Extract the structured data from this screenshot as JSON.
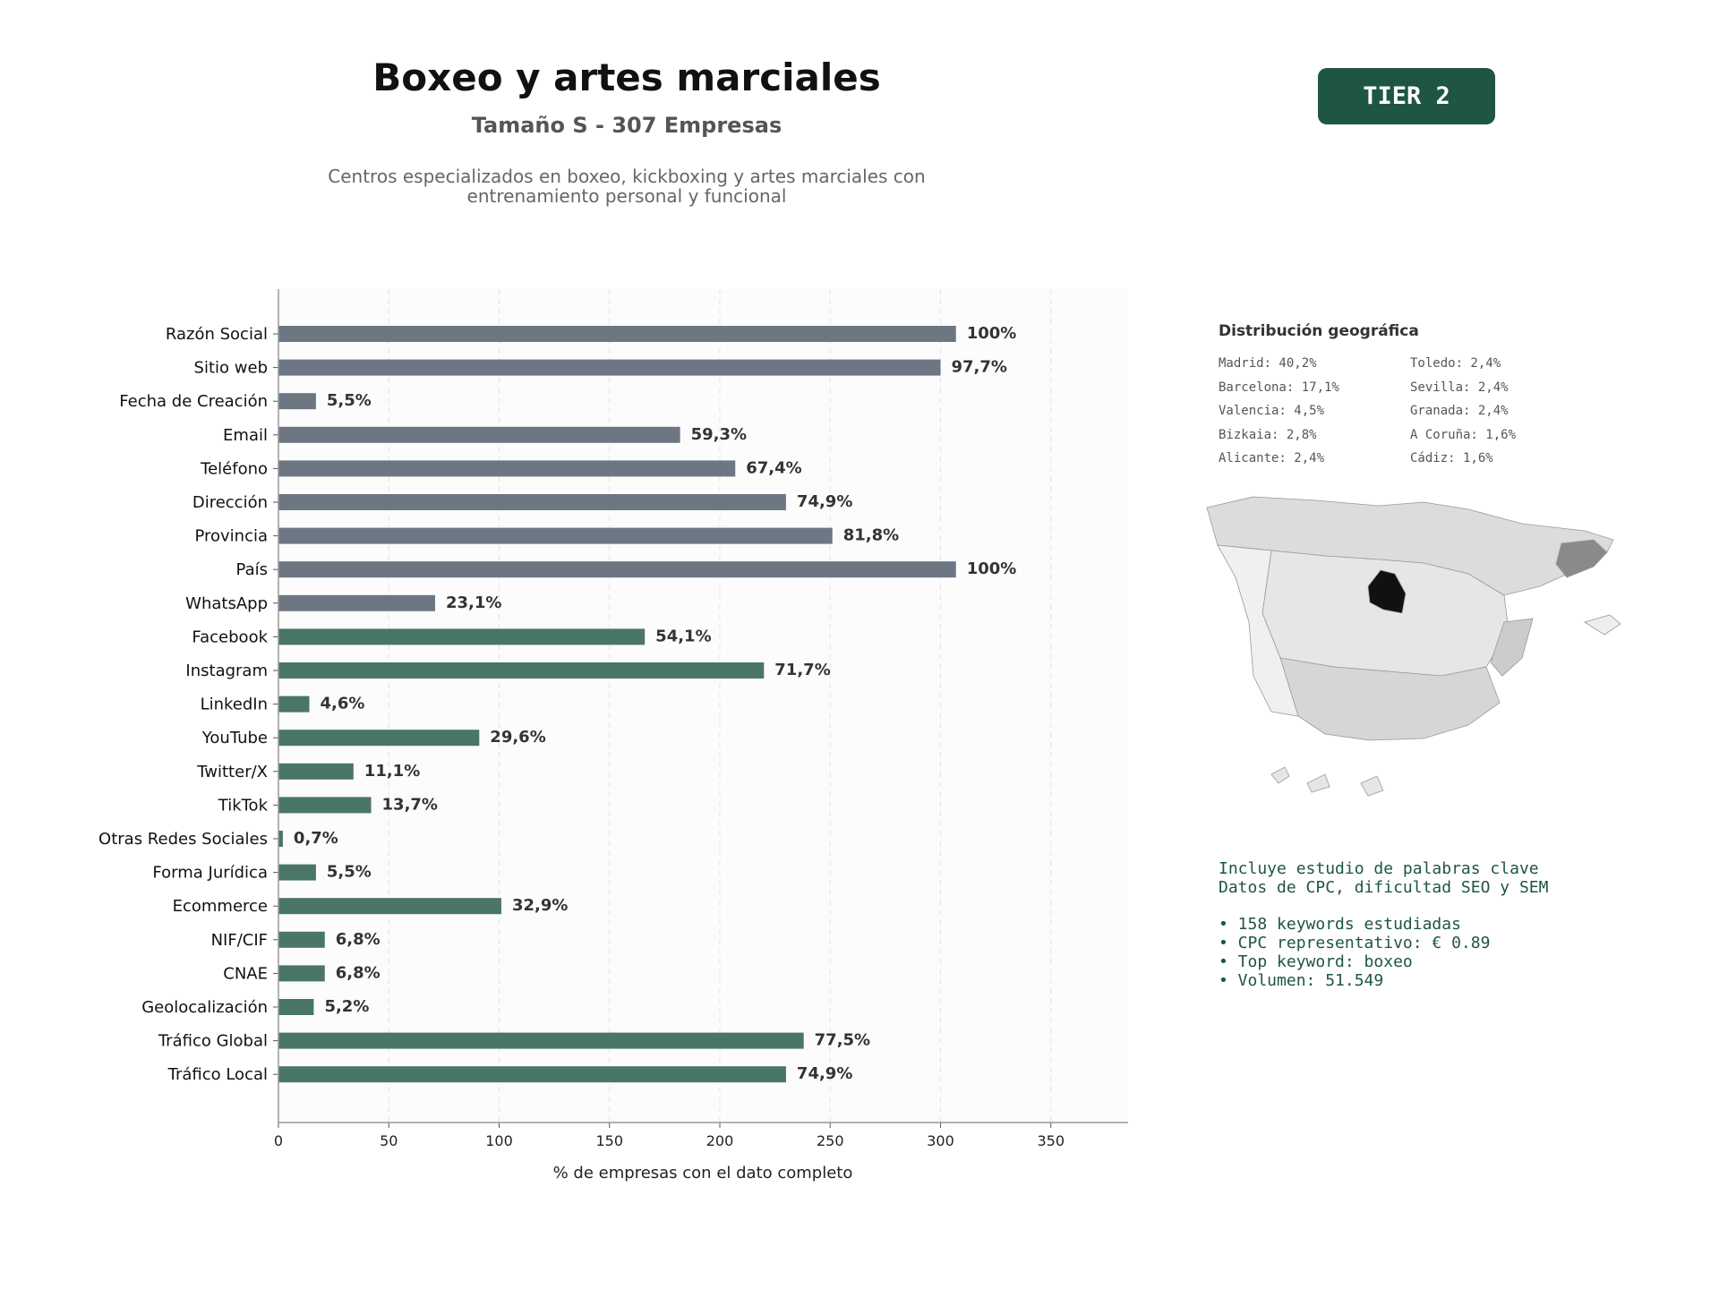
{
  "header": {
    "title": "Boxeo y artes marciales",
    "subtitle": "Tamaño S - 307 Empresas",
    "description_line1": "Centros especializados en boxeo, kickboxing y artes marciales con",
    "description_line2": "entrenamiento personal y funcional",
    "tier_label": "TIER 2",
    "tier_color": "#1e5641"
  },
  "chart_data": {
    "type": "bar",
    "orientation": "horizontal",
    "categories": [
      "Razón Social",
      "Sitio web",
      "Fecha de Creación",
      "Email",
      "Teléfono",
      "Dirección",
      "Provincia",
      "País",
      "WhatsApp",
      "Facebook",
      "Instagram",
      "LinkedIn",
      "YouTube",
      "Twitter/X",
      "TikTok",
      "Otras Redes Sociales",
      "Forma Jurídica",
      "Ecommerce",
      "NIF/CIF",
      "CNAE",
      "Geolocalización",
      "Tráfico Global",
      "Tráfico Local"
    ],
    "values": [
      307,
      300,
      17,
      182,
      207,
      230,
      251,
      307,
      71,
      166,
      220,
      14,
      91,
      34,
      42,
      2,
      17,
      101,
      21,
      21,
      16,
      238,
      230
    ],
    "value_labels": [
      "100%",
      "97,7%",
      "5,5%",
      "59,3%",
      "67,4%",
      "74,9%",
      "81,8%",
      "100%",
      "23,1%",
      "54,1%",
      "71,7%",
      "4,6%",
      "29,6%",
      "11,1%",
      "13,7%",
      "0,7%",
      "5,5%",
      "32,9%",
      "6,8%",
      "6,8%",
      "5,2%",
      "77,5%",
      "74,9%"
    ],
    "bar_colors": [
      "#6c7783",
      "#6c7783",
      "#6c7783",
      "#6c7783",
      "#6c7783",
      "#6c7783",
      "#6c7783",
      "#6c7783",
      "#6c7783",
      "#4a7665",
      "#4a7665",
      "#4a7665",
      "#4a7665",
      "#4a7665",
      "#4a7665",
      "#4a7665",
      "#4a7665",
      "#4a7665",
      "#4a7665",
      "#4a7665",
      "#4a7665",
      "#4a7665",
      "#4a7665"
    ],
    "xlabel": "% de empresas con el dato completo",
    "xlim": [
      0,
      385
    ],
    "xticks": [
      0,
      50,
      100,
      150,
      200,
      250,
      300,
      350
    ],
    "grid": "vertical dashed"
  },
  "geo": {
    "title": "Distribución geográfica",
    "col1": [
      "Madrid: 40,2%",
      "Barcelona: 17,1%",
      "Valencia: 4,5%",
      "Bizkaia: 2,8%",
      "Alicante: 2,4%"
    ],
    "col2": [
      "Toledo: 2,4%",
      "Sevilla: 2,4%",
      "Granada: 2,4%",
      "A Coruña: 1,6%",
      "Cádiz: 1,6%"
    ]
  },
  "keywords": {
    "line1": "Incluye estudio de palabras clave",
    "line2": "Datos de CPC, dificultad SEO y SEM",
    "bullets": [
      "• 158 keywords estudiadas",
      "• CPC representativo: € 0.89",
      "• Top keyword: boxeo",
      "• Volumen: 51.549"
    ]
  }
}
